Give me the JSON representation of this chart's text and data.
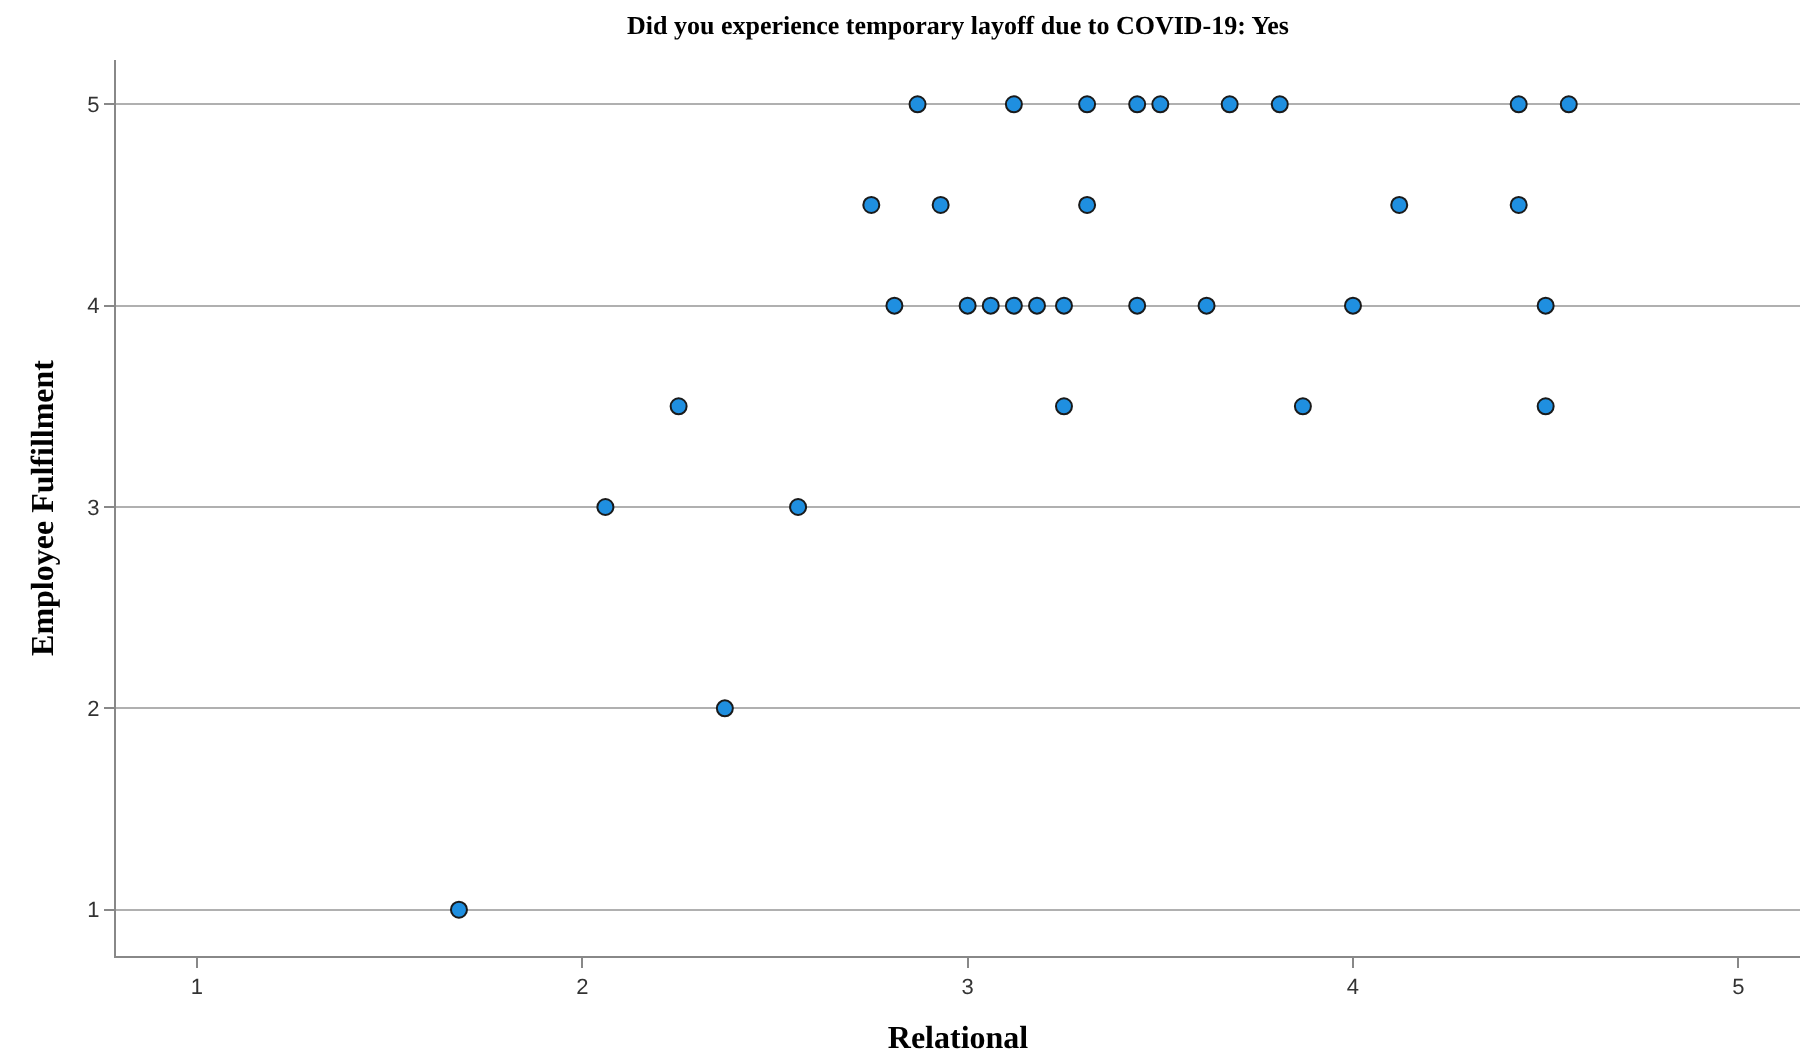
{
  "chart_data": {
    "type": "scatter",
    "title": "Did you experience temporary layoff due to COVID-19: Yes",
    "xlabel": "Relational",
    "ylabel": "Employee Fulfillment",
    "series": [
      {
        "color": "#1f8fe0",
        "x": [
          2.87,
          3.12,
          3.31,
          3.44,
          3.5,
          3.68,
          3.81,
          4.43,
          4.56,
          2.75,
          2.93,
          3.31,
          4.12,
          4.43,
          2.81,
          3.0,
          3.06,
          3.12,
          3.18,
          3.25,
          3.44,
          3.62,
          4.0,
          4.5,
          3.25,
          3.87,
          4.5,
          2.25,
          2.06,
          2.56,
          2.37,
          1.68
        ],
        "values": [
          5,
          5,
          5,
          5,
          5,
          5,
          5,
          5,
          5,
          4.5,
          4.5,
          4.5,
          4.5,
          4.5,
          4,
          4,
          4,
          4,
          4,
          4,
          4,
          4,
          4,
          4,
          3.5,
          3.5,
          3.5,
          3.5,
          3,
          3,
          2,
          1
        ]
      }
    ],
    "xlim": [
      0.79,
      5.16
    ],
    "xticks": [
      1,
      2,
      3,
      4,
      5
    ],
    "ylim": [
      0.77,
      5.22
    ],
    "yticks": [
      1,
      2,
      3,
      4,
      5
    ],
    "grid": "y",
    "marker": "circle"
  }
}
